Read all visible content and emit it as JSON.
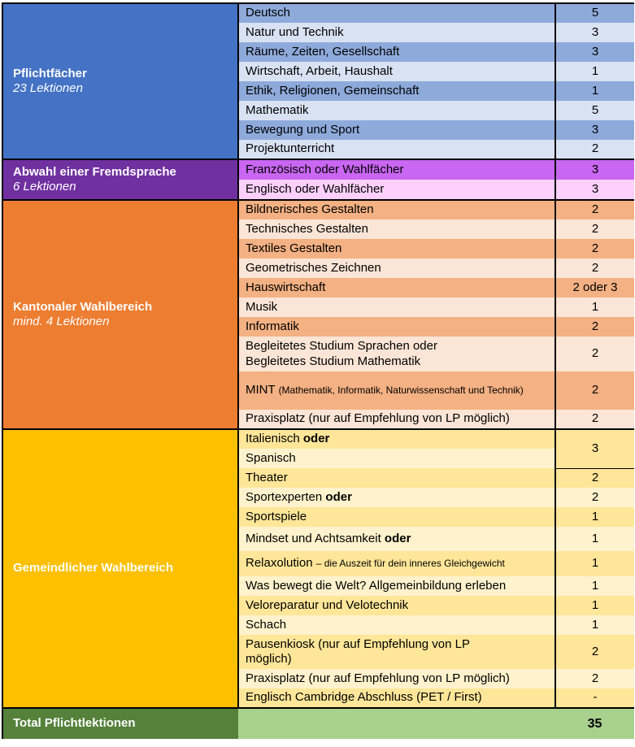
{
  "colors": {
    "text": "#000000",
    "border": "#000000",
    "cat-text": "#FFFFFF",
    "cat-blue": "#4472C4",
    "row-blue-dark": "#8EAADB",
    "row-blue-light": "#D9E2F3",
    "cat-purple": "#7030A0",
    "row-magenta": "#C966F2",
    "row-pink": "#FDD0FB",
    "cat-orange": "#ED7D31",
    "row-orange-dark": "#F4B183",
    "row-orange-light": "#FBE5D6",
    "cat-yellow": "#FFC000",
    "row-yellow-dark": "#FFE699",
    "row-yellow-light": "#FFF2CC",
    "cat-green": "#55813B",
    "row-green-light": "#A9D18E"
  },
  "sections": [
    {
      "category": {
        "title": "Pflichtfächer",
        "subtitle": "23 Lektionen"
      },
      "rows": [
        {
          "subject": "Deutsch",
          "value": "5"
        },
        {
          "subject": "Natur und Technik",
          "value": "3"
        },
        {
          "subject": "Räume, Zeiten, Gesellschaft",
          "value": "3"
        },
        {
          "subject": "Wirtschaft, Arbeit, Haushalt",
          "value": "1"
        },
        {
          "subject": "Ethik, Religionen, Gemeinschaft",
          "value": "1"
        },
        {
          "subject": "Mathematik",
          "value": "5"
        },
        {
          "subject": "Bewegung und Sport",
          "value": "3"
        },
        {
          "subject": "Projektunterricht",
          "value": "2"
        }
      ]
    },
    {
      "category": {
        "title": "Abwahl einer Fremdsprache",
        "subtitle": "6 Lektionen"
      },
      "rows": [
        {
          "subject": "Französisch oder Wahlfächer",
          "value": "3"
        },
        {
          "subject": "Englisch oder Wahlfächer",
          "value": "3"
        }
      ]
    },
    {
      "category": {
        "title": "Kantonaler Wahlbereich",
        "subtitle": "mind. 4 Lektionen"
      },
      "rows": [
        {
          "subject": "Bildnerisches Gestalten",
          "value": "2"
        },
        {
          "subject": "Technisches Gestalten",
          "value": "2"
        },
        {
          "subject": "Textiles Gestalten",
          "value": "2"
        },
        {
          "subject": "Geometrisches Zeichnen",
          "value": "2"
        },
        {
          "subject": "Hauswirtschaft",
          "value": "2 oder 3"
        },
        {
          "subject": "Musik",
          "value": "1"
        },
        {
          "subject": "Informatik",
          "value": "2"
        },
        {
          "subject": "Begleitetes Studium Sprachen oder\nBegleitetes Studium Mathematik",
          "value": "2"
        },
        {
          "subject": "MINT ",
          "small": "(Mathematik, Informatik, Naturwissenschaft und Technik)",
          "value": "2"
        },
        {
          "subject": "Praxisplatz (nur auf Empfehlung von LP möglich)",
          "value": "2"
        }
      ]
    },
    {
      "category": {
        "title": "Gemeindlicher Wahlbereich",
        "subtitle": ""
      },
      "rows": [
        {
          "subject": "Italienisch ",
          "bold": "oder",
          "value": "3"
        },
        {
          "subject": "Spanisch"
        },
        {
          "subject": "Theater",
          "value": "2"
        },
        {
          "subject": "Sportexperten ",
          "bold": "oder",
          "value": "2"
        },
        {
          "subject": "Sportspiele",
          "value": "1"
        },
        {
          "subject": "Mindset und Achtsamkeit ",
          "bold": "oder",
          "value": "1"
        },
        {
          "subject": "Relaxolution ",
          "small": "– die Auszeit für dein inneres Gleichgewicht",
          "value": "1"
        },
        {
          "subject": "Was bewegt die Welt? Allgemeinbildung erleben",
          "value": "1"
        },
        {
          "subject": "Veloreparatur und Velotechnik",
          "value": "1"
        },
        {
          "subject": "Schach",
          "value": "1"
        },
        {
          "subject": "Pausenkiosk (nur auf Empfehlung von LP\nmöglich)",
          "value": "2"
        },
        {
          "subject": "Praxisplatz (nur auf Empfehlung von LP möglich)",
          "value": "2"
        },
        {
          "subject": "Englisch Cambridge Abschluss (PET / First)",
          "value": "-"
        }
      ]
    }
  ],
  "total": {
    "label": "Total Pflichtlektionen",
    "value": "35"
  }
}
